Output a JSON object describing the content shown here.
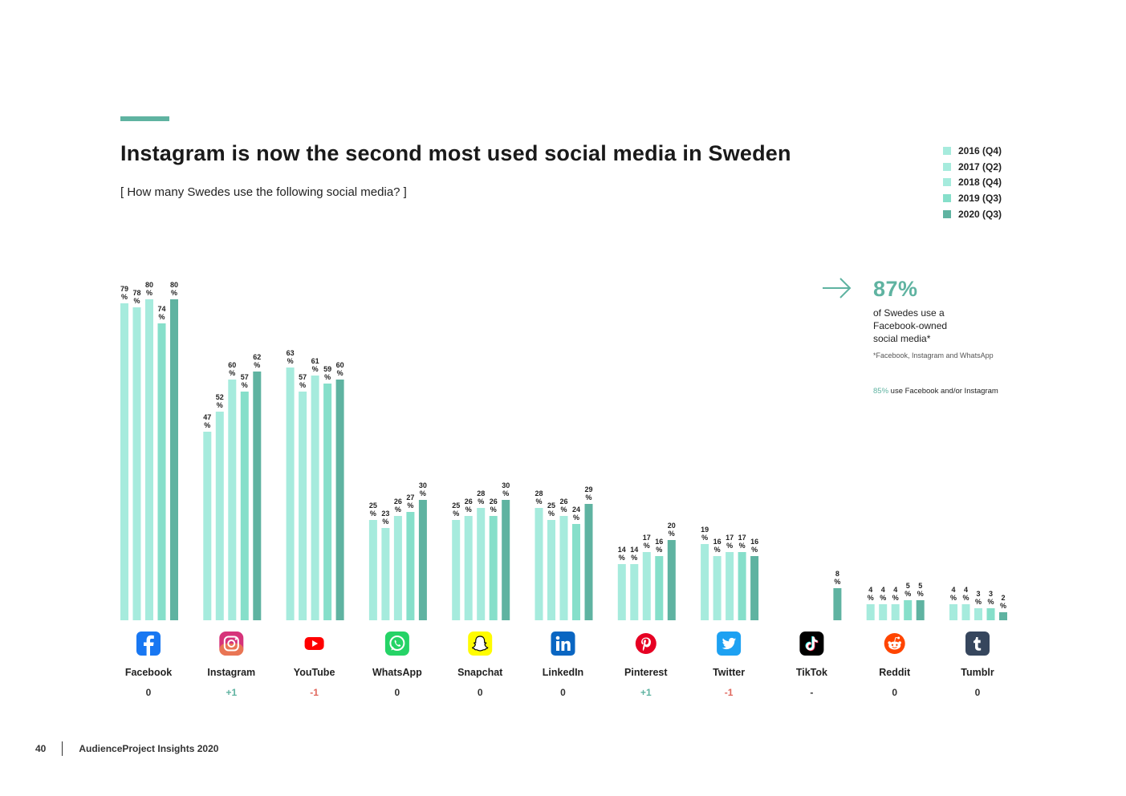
{
  "title": "Instagram is now the second most used social media in Sweden",
  "subtitle": "[ How many Swedes use the following social media? ]",
  "colors": {
    "accent": "#5fb3a1",
    "positive": "#5fb3a1",
    "negative": "#e0675d",
    "neutral": "#333333"
  },
  "legend": [
    {
      "label": "2016 (Q4)",
      "color": "#a6ebdd"
    },
    {
      "label": "2017 (Q2)",
      "color": "#a6ebdd"
    },
    {
      "label": "2018 (Q4)",
      "color": "#a6ebdd"
    },
    {
      "label": "2019 (Q3)",
      "color": "#86dfca"
    },
    {
      "label": "2020 (Q3)",
      "color": "#5fb3a1"
    }
  ],
  "chart_data": {
    "type": "bar",
    "title": "Instagram is now the second most used social media in Sweden",
    "xlabel": "",
    "ylabel": "",
    "ylim": [
      0,
      100
    ],
    "unit": "%",
    "categories": [
      "Facebook",
      "Instagram",
      "YouTube",
      "WhatsApp",
      "Snapchat",
      "LinkedIn",
      "Pinterest",
      "Twitter",
      "TikTok",
      "Reddit",
      "Tumblr"
    ],
    "icons": [
      "facebook-icon",
      "instagram-icon",
      "youtube-icon",
      "whatsapp-icon",
      "snapchat-icon",
      "linkedin-icon",
      "pinterest-icon",
      "twitter-icon",
      "tiktok-icon",
      "reddit-icon",
      "tumblr-icon"
    ],
    "changes": [
      "0",
      "+1",
      "-1",
      "0",
      "0",
      "0",
      "+1",
      "-1",
      "-",
      "0",
      "0"
    ],
    "series": [
      {
        "name": "2016 (Q4)",
        "values": [
          79,
          47,
          63,
          25,
          25,
          28,
          14,
          19,
          null,
          4,
          4
        ]
      },
      {
        "name": "2017 (Q2)",
        "values": [
          78,
          52,
          57,
          23,
          26,
          25,
          14,
          16,
          null,
          4,
          4
        ]
      },
      {
        "name": "2018 (Q4)",
        "values": [
          80,
          60,
          61,
          26,
          28,
          26,
          17,
          17,
          null,
          4,
          3
        ]
      },
      {
        "name": "2019 (Q3)",
        "values": [
          74,
          57,
          59,
          27,
          26,
          24,
          16,
          17,
          null,
          5,
          3
        ]
      },
      {
        "name": "2020 (Q3)",
        "values": [
          80,
          62,
          60,
          30,
          30,
          29,
          20,
          16,
          8,
          5,
          2
        ]
      }
    ]
  },
  "callout": {
    "percentage": "87%",
    "text": "of Swedes use a Facebook-owned social media*",
    "footnote": "*Facebook, Instagram and WhatsApp",
    "note_pct": "85%",
    "note_text": "use Facebook and/or Instagram"
  },
  "footer": {
    "page_number": "40",
    "publication": "AudienceProject Insights 2020"
  }
}
